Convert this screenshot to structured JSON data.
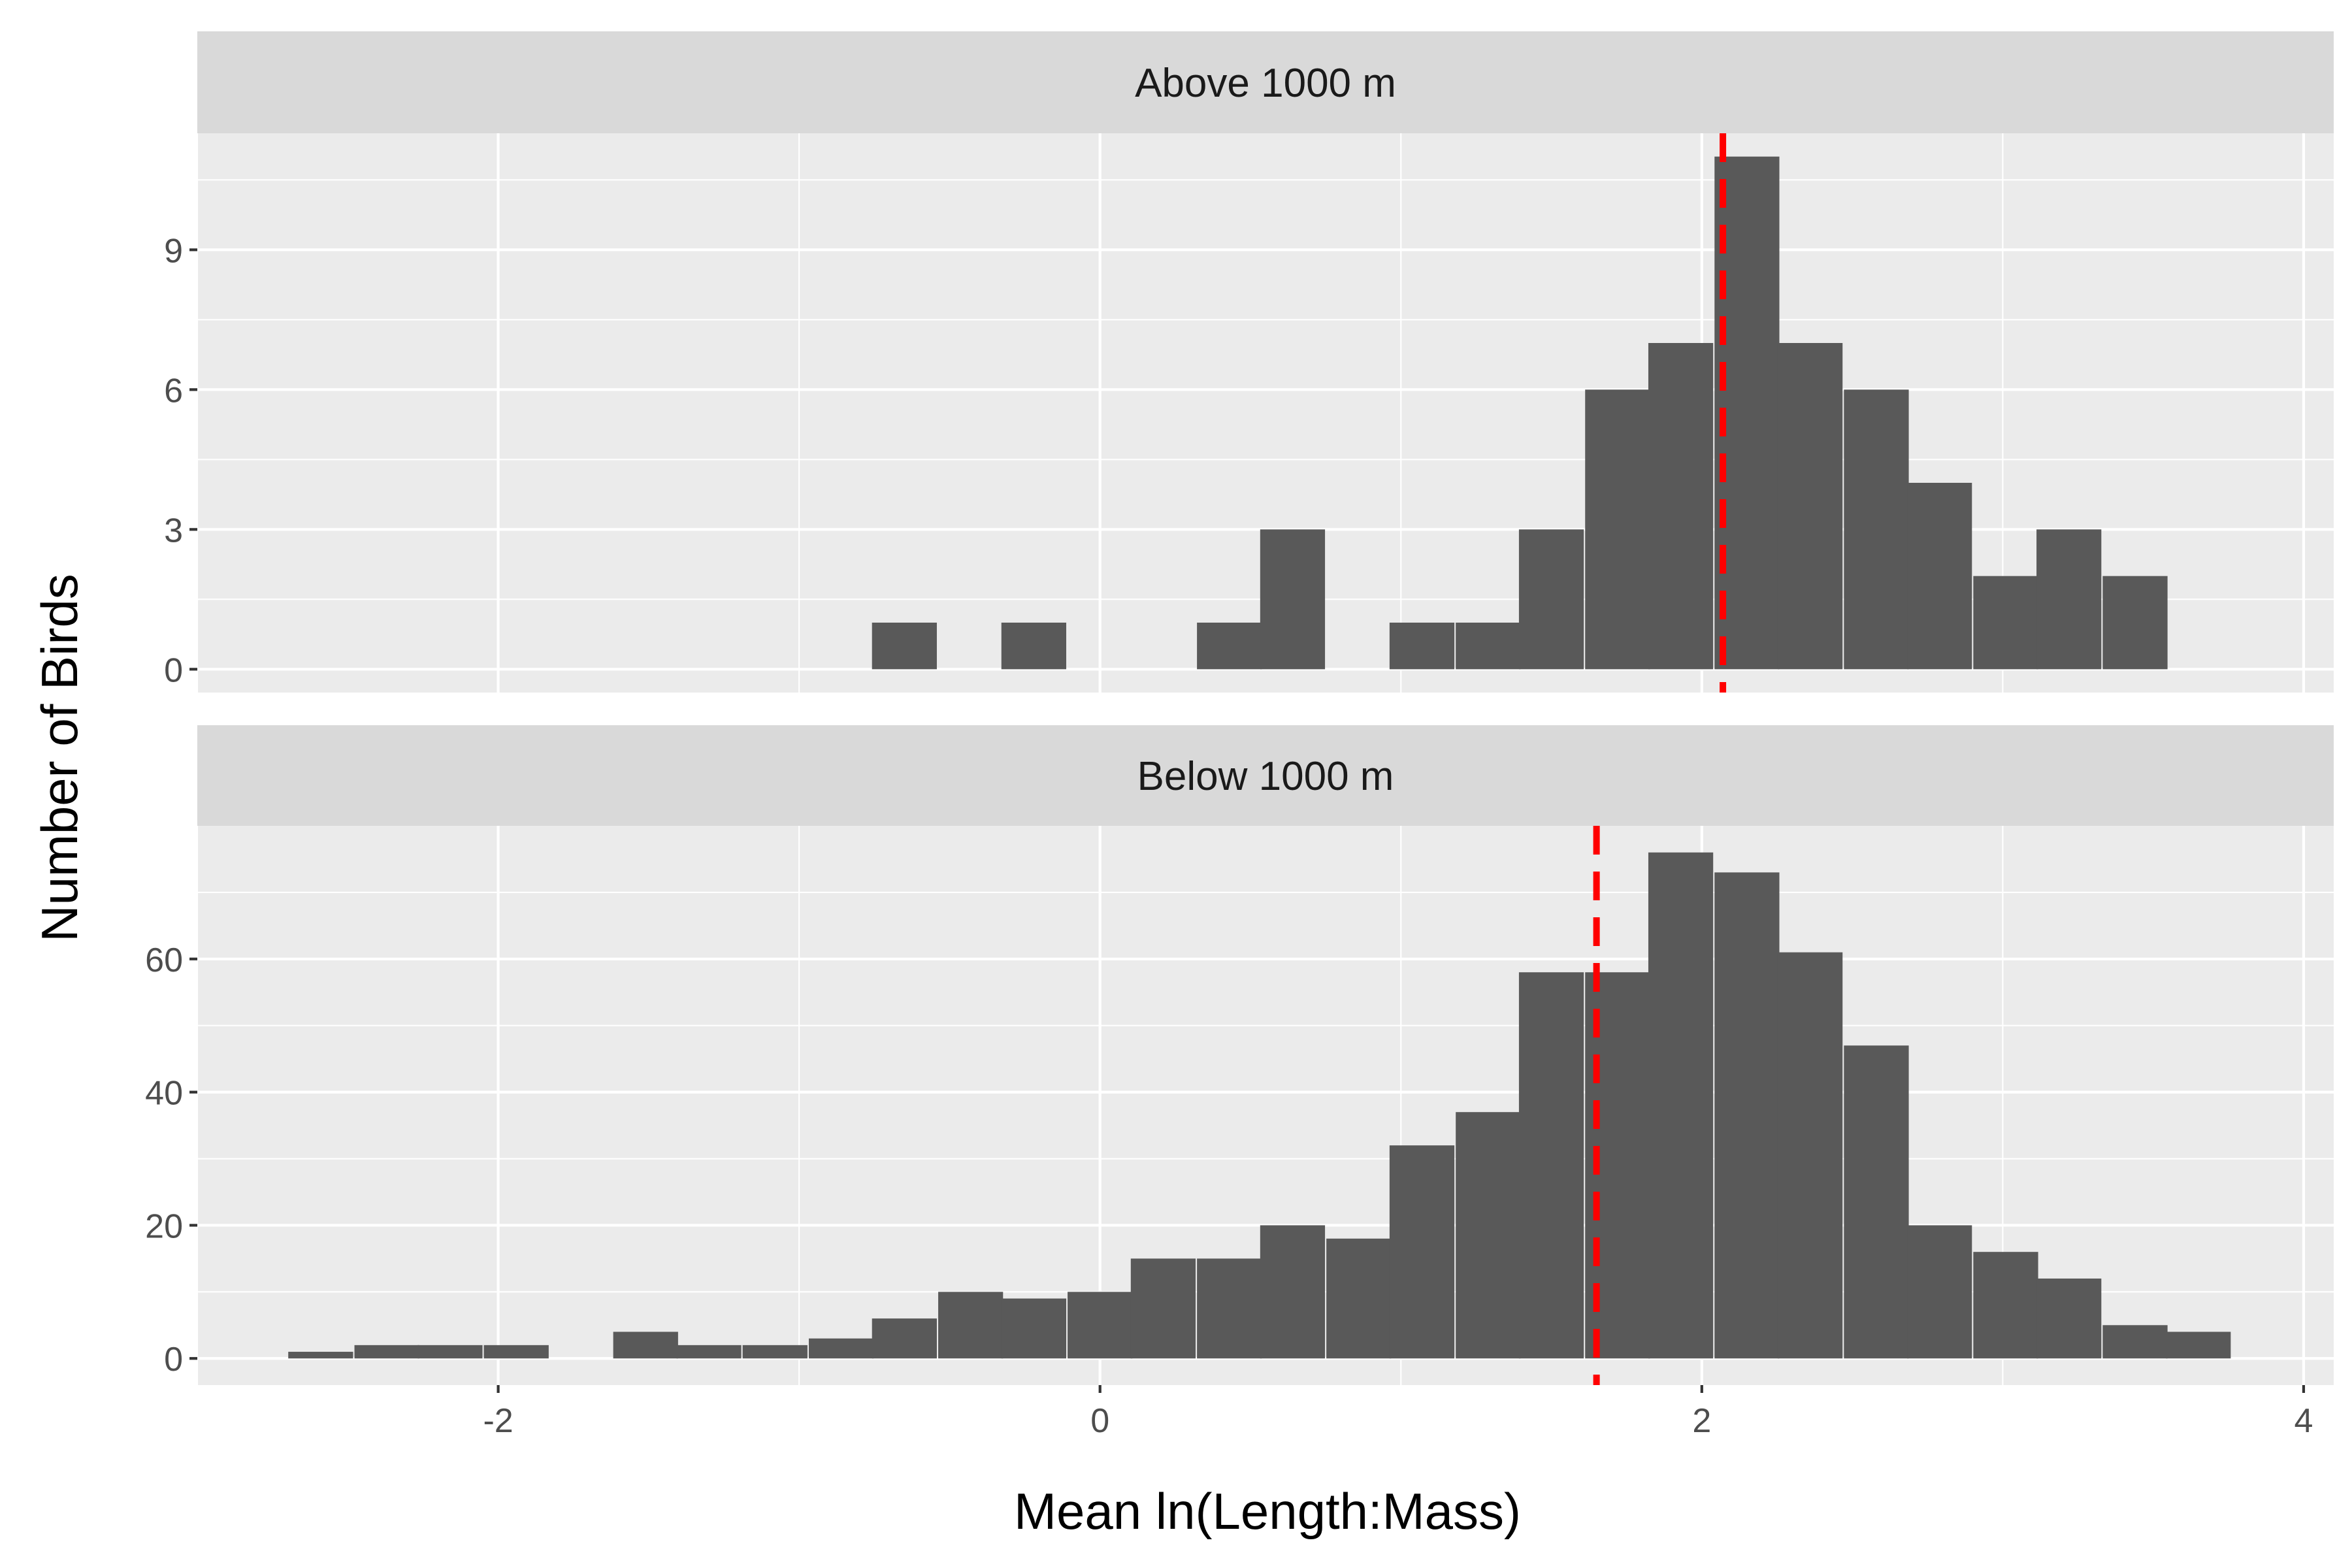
{
  "chart_data": {
    "type": "bar",
    "xlabel": "Mean ln(Length:Mass)",
    "ylabel": "Number of Birds",
    "xlim": [
      -3.0,
      4.1
    ],
    "x_ticks": [
      -2,
      0,
      2,
      4
    ],
    "x_tick_labels": [
      "-2",
      "0",
      "2",
      "4"
    ],
    "bin_width": 0.2155,
    "grid": true,
    "panels": [
      {
        "strip_label": "Above 1000 m",
        "ylim": [
          -0.5,
          11.5
        ],
        "y_ticks": [
          0,
          3,
          6,
          9
        ],
        "y_tick_labels": [
          "0",
          "3",
          "6",
          "9"
        ],
        "mean": 2.07,
        "bins": [
          {
            "x": -0.65,
            "count": 1
          },
          {
            "x": -0.22,
            "count": 1
          },
          {
            "x": 0.43,
            "count": 1
          },
          {
            "x": 0.64,
            "count": 3
          },
          {
            "x": 1.07,
            "count": 1
          },
          {
            "x": 1.29,
            "count": 1
          },
          {
            "x": 1.5,
            "count": 3
          },
          {
            "x": 1.72,
            "count": 6
          },
          {
            "x": 1.93,
            "count": 7
          },
          {
            "x": 2.15,
            "count": 11
          },
          {
            "x": 2.36,
            "count": 7
          },
          {
            "x": 2.58,
            "count": 6
          },
          {
            "x": 2.79,
            "count": 4
          },
          {
            "x": 3.01,
            "count": 2
          },
          {
            "x": 3.22,
            "count": 3
          },
          {
            "x": 3.44,
            "count": 2
          }
        ]
      },
      {
        "strip_label": "Below 1000 m",
        "ylim": [
          -4,
          80
        ],
        "y_ticks": [
          0,
          20,
          40,
          60
        ],
        "y_tick_labels": [
          "0",
          "20",
          "40",
          "60"
        ],
        "mean": 1.65,
        "bins": [
          {
            "x": -2.59,
            "count": 1
          },
          {
            "x": -2.37,
            "count": 2
          },
          {
            "x": -2.16,
            "count": 2
          },
          {
            "x": -1.94,
            "count": 2
          },
          {
            "x": -1.51,
            "count": 4
          },
          {
            "x": -1.3,
            "count": 2
          },
          {
            "x": -1.08,
            "count": 2
          },
          {
            "x": -0.86,
            "count": 3
          },
          {
            "x": -0.65,
            "count": 6
          },
          {
            "x": -0.43,
            "count": 10
          },
          {
            "x": -0.22,
            "count": 9
          },
          {
            "x": 0.0,
            "count": 10
          },
          {
            "x": 0.21,
            "count": 15
          },
          {
            "x": 0.43,
            "count": 15
          },
          {
            "x": 0.64,
            "count": 20
          },
          {
            "x": 0.86,
            "count": 18
          },
          {
            "x": 1.07,
            "count": 32
          },
          {
            "x": 1.29,
            "count": 37
          },
          {
            "x": 1.5,
            "count": 58
          },
          {
            "x": 1.72,
            "count": 58
          },
          {
            "x": 1.93,
            "count": 76
          },
          {
            "x": 2.15,
            "count": 73
          },
          {
            "x": 2.36,
            "count": 61
          },
          {
            "x": 2.58,
            "count": 47
          },
          {
            "x": 2.79,
            "count": 20
          },
          {
            "x": 3.01,
            "count": 16
          },
          {
            "x": 3.22,
            "count": 12
          },
          {
            "x": 3.44,
            "count": 5
          },
          {
            "x": 3.65,
            "count": 4
          }
        ]
      }
    ],
    "colors": {
      "panel_background": "#ebebeb",
      "strip_background": "#d9d9d9",
      "bar_fill": "#595959",
      "mean_line": "#ff0000",
      "grid": "#ffffff"
    }
  }
}
